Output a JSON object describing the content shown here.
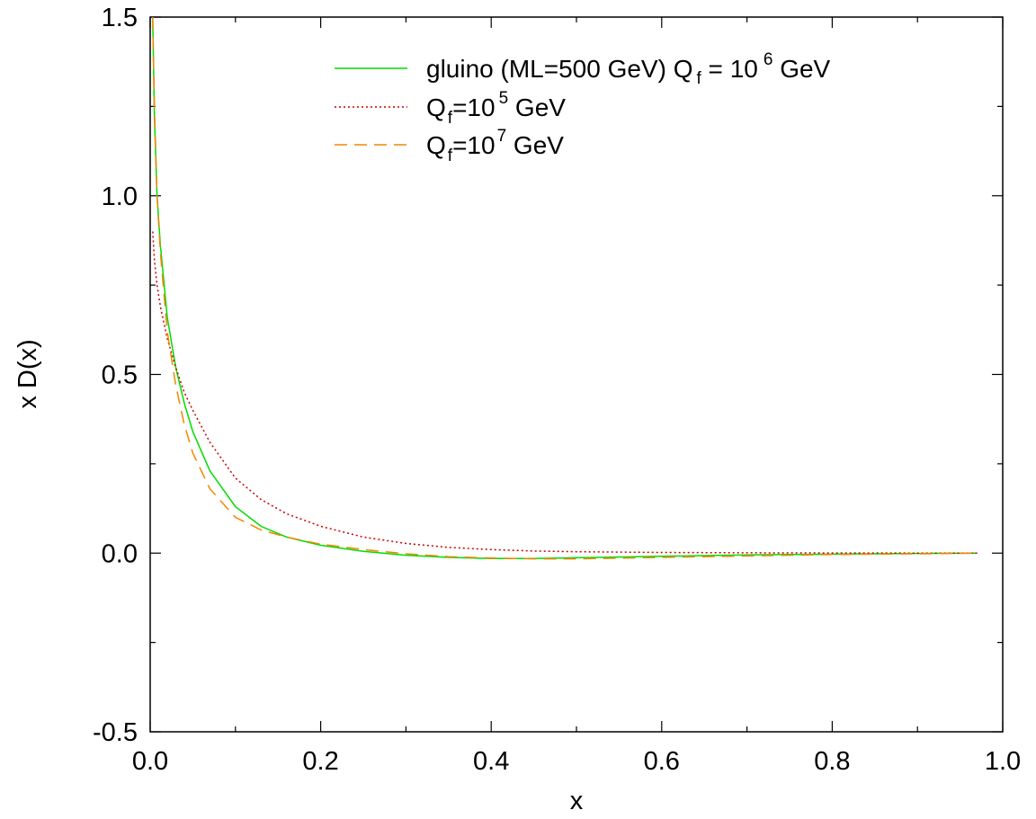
{
  "chart_data": {
    "type": "line",
    "xlabel": "x",
    "ylabel": "x D(x)",
    "xlim": [
      0.0,
      1.0
    ],
    "ylim": [
      -0.5,
      1.5
    ],
    "x_ticks": [
      "0.0",
      "0.2",
      "0.4",
      "0.6",
      "0.8",
      "1.0"
    ],
    "y_ticks": [
      "-0.5",
      "0.0",
      "0.5",
      "1.0",
      "1.5"
    ],
    "legend_position": "top-right",
    "grid": false,
    "series": [
      {
        "name": "gluino (ML=500 GeV) Q_f = 10^6 GeV",
        "color": "#00dd00",
        "style": "solid",
        "x": [
          0.003,
          0.005,
          0.008,
          0.012,
          0.02,
          0.03,
          0.04,
          0.05,
          0.07,
          0.1,
          0.13,
          0.16,
          0.2,
          0.25,
          0.3,
          0.35,
          0.4,
          0.45,
          0.5,
          0.55,
          0.6,
          0.65,
          0.7,
          0.75,
          0.8,
          0.85,
          0.9,
          0.97
        ],
        "y": [
          1.5,
          1.22,
          1.0,
          0.86,
          0.66,
          0.52,
          0.42,
          0.34,
          0.23,
          0.13,
          0.075,
          0.045,
          0.022,
          0.005,
          -0.006,
          -0.012,
          -0.015,
          -0.015,
          -0.013,
          -0.011,
          -0.009,
          -0.007,
          -0.005,
          -0.004,
          -0.003,
          -0.002,
          -0.001,
          0.0
        ]
      },
      {
        "name": "Q_f=10^5 GeV",
        "color": "#cc0000",
        "style": "dotted",
        "x": [
          0.003,
          0.005,
          0.008,
          0.012,
          0.02,
          0.03,
          0.04,
          0.05,
          0.07,
          0.1,
          0.13,
          0.16,
          0.2,
          0.25,
          0.3,
          0.35,
          0.4,
          0.45,
          0.5,
          0.6,
          0.7,
          0.8,
          0.9,
          0.97
        ],
        "y": [
          0.9,
          0.82,
          0.75,
          0.69,
          0.6,
          0.52,
          0.45,
          0.4,
          0.31,
          0.21,
          0.15,
          0.11,
          0.075,
          0.045,
          0.027,
          0.016,
          0.01,
          0.006,
          0.004,
          0.002,
          0.001,
          0.0005,
          0.0002,
          0.0
        ]
      },
      {
        "name": "Q_f=10^7 GeV",
        "color": "#ee8800",
        "style": "dashed",
        "x": [
          0.003,
          0.005,
          0.008,
          0.012,
          0.02,
          0.03,
          0.04,
          0.05,
          0.07,
          0.1,
          0.13,
          0.16,
          0.2,
          0.25,
          0.3,
          0.35,
          0.4,
          0.45,
          0.5,
          0.55,
          0.6,
          0.65,
          0.7,
          0.75,
          0.8,
          0.85,
          0.9,
          0.97
        ],
        "y": [
          1.5,
          1.25,
          1.0,
          0.84,
          0.62,
          0.47,
          0.36,
          0.28,
          0.18,
          0.1,
          0.065,
          0.045,
          0.025,
          0.01,
          -0.002,
          -0.01,
          -0.014,
          -0.016,
          -0.016,
          -0.014,
          -0.012,
          -0.01,
          -0.008,
          -0.006,
          -0.004,
          -0.003,
          -0.002,
          0.0
        ]
      }
    ]
  },
  "legend": [
    {
      "base": "gluino (ML=500 GeV) Q",
      "sub": "f",
      "mid": " = 10",
      "sup": "6",
      "tail": " GeV"
    },
    {
      "base": "Q",
      "sub": "f",
      "mid": "=10",
      "sup": "5",
      "tail": " GeV"
    },
    {
      "base": "Q",
      "sub": "f",
      "mid": "=10",
      "sup": "7",
      "tail": " GeV"
    }
  ]
}
